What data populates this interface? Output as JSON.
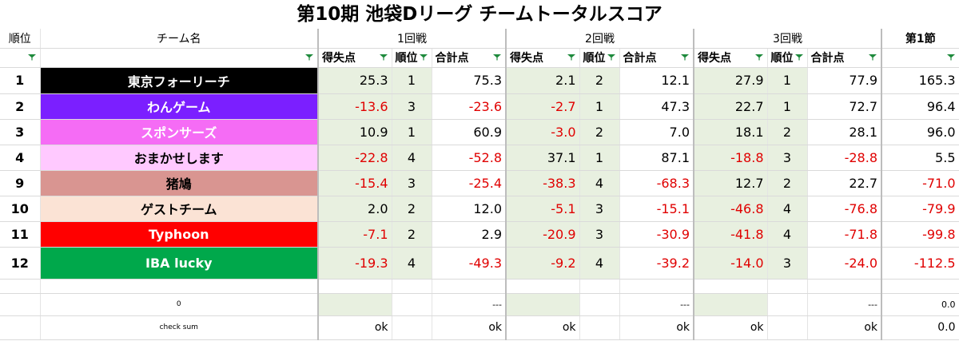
{
  "title": "第10期 池袋Dリーグ チームトータルスコア",
  "headers": {
    "rank": "順位",
    "team_name": "チーム名",
    "round1": "1回戦",
    "round2": "2回戦",
    "round3": "3回戦",
    "section1": "第1節"
  },
  "subheaders": {
    "points": "得失点",
    "rank": "順位",
    "total": "合計点"
  },
  "colors": {
    "grid_green": "#1e8a3c",
    "shade": "#e8f0e0",
    "negative": "#e00000"
  },
  "rows": [
    {
      "rank": "1",
      "team": "東京フォーリーチ",
      "bg": "#000000",
      "fg": "#ffffff",
      "r1": {
        "pts": "25.3",
        "rk": "1",
        "tot": "75.3"
      },
      "r2": {
        "pts": "2.1",
        "rk": "2",
        "tot": "12.1"
      },
      "r3": {
        "pts": "27.9",
        "rk": "1",
        "tot": "77.9"
      },
      "sec": "165.3"
    },
    {
      "rank": "2",
      "team": "わんゲーム",
      "bg": "#7b1fff",
      "fg": "#ffffff",
      "r1": {
        "pts": "-13.6",
        "rk": "3",
        "tot": "-23.6"
      },
      "r2": {
        "pts": "-2.7",
        "rk": "1",
        "tot": "47.3"
      },
      "r3": {
        "pts": "22.7",
        "rk": "1",
        "tot": "72.7"
      },
      "sec": "96.4"
    },
    {
      "rank": "3",
      "team": "スポンサーズ",
      "bg": "#f56cf5",
      "fg": "#ffffff",
      "r1": {
        "pts": "10.9",
        "rk": "1",
        "tot": "60.9"
      },
      "r2": {
        "pts": "-3.0",
        "rk": "2",
        "tot": "7.0"
      },
      "r3": {
        "pts": "18.1",
        "rk": "2",
        "tot": "28.1"
      },
      "sec": "96.0"
    },
    {
      "rank": "4",
      "team": "おまかせします",
      "bg": "#ffc9ff",
      "fg": "#000000",
      "r1": {
        "pts": "-22.8",
        "rk": "4",
        "tot": "-52.8"
      },
      "r2": {
        "pts": "37.1",
        "rk": "1",
        "tot": "87.1"
      },
      "r3": {
        "pts": "-18.8",
        "rk": "3",
        "tot": "-28.8"
      },
      "sec": "5.5"
    },
    {
      "rank": "9",
      "team": "猪鳩",
      "bg": "#d99591",
      "fg": "#000000",
      "r1": {
        "pts": "-15.4",
        "rk": "3",
        "tot": "-25.4"
      },
      "r2": {
        "pts": "-38.3",
        "rk": "4",
        "tot": "-68.3"
      },
      "r3": {
        "pts": "12.7",
        "rk": "2",
        "tot": "22.7"
      },
      "sec": "-71.0"
    },
    {
      "rank": "10",
      "team": "ゲストチーム",
      "bg": "#fbe3d5",
      "fg": "#000000",
      "r1": {
        "pts": "2.0",
        "rk": "2",
        "tot": "12.0"
      },
      "r2": {
        "pts": "-5.1",
        "rk": "3",
        "tot": "-15.1"
      },
      "r3": {
        "pts": "-46.8",
        "rk": "4",
        "tot": "-76.8"
      },
      "sec": "-79.9"
    },
    {
      "rank": "11",
      "team": "Typhoon",
      "bg": "#ff0000",
      "fg": "#ffffff",
      "r1": {
        "pts": "-7.1",
        "rk": "2",
        "tot": "2.9"
      },
      "r2": {
        "pts": "-20.9",
        "rk": "3",
        "tot": "-30.9"
      },
      "r3": {
        "pts": "-41.8",
        "rk": "4",
        "tot": "-71.8"
      },
      "sec": "-99.8"
    },
    {
      "rank": "12",
      "team": "IBA lucky",
      "bg": "#00a84b",
      "fg": "#ffffff",
      "r1": {
        "pts": "-19.3",
        "rk": "4",
        "tot": "-49.3"
      },
      "r2": {
        "pts": "-9.2",
        "rk": "4",
        "tot": "-39.2"
      },
      "r3": {
        "pts": "-14.0",
        "rk": "3",
        "tot": "-24.0"
      },
      "sec": "-112.5"
    }
  ],
  "summary": {
    "zero_label": "0",
    "dash": "---",
    "zero_value": "0.0"
  },
  "checksum": {
    "label": "check sum",
    "ok": "ok",
    "value": "0.0"
  }
}
